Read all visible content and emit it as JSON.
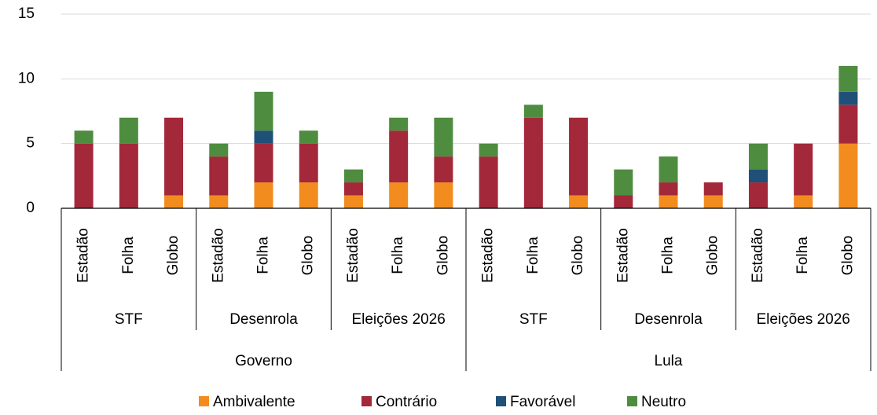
{
  "chart_data": {
    "type": "stacked_bar",
    "categories": [
      "Estadão",
      "Folha",
      "Globo",
      "Estadão",
      "Folha",
      "Globo",
      "Estadão",
      "Folha",
      "Globo",
      "Estadão",
      "Folha",
      "Globo",
      "Estadão",
      "Folha",
      "Globo",
      "Estadão",
      "Folha",
      "Globo"
    ],
    "subgroups": [
      "STF",
      "Desenrola",
      "Eleições 2026",
      "STF",
      "Desenrola",
      "Eleições 2026"
    ],
    "groups": [
      "Governo",
      "Lula"
    ],
    "series": [
      {
        "name": "Ambivalente",
        "color": "#f28c1e",
        "values": [
          0,
          0,
          1,
          1,
          2,
          2,
          1,
          2,
          2,
          0,
          0,
          1,
          0,
          1,
          1,
          0,
          1,
          5
        ]
      },
      {
        "name": "Contrário",
        "color": "#a3283a",
        "values": [
          5,
          5,
          6,
          3,
          3,
          3,
          1,
          4,
          2,
          4,
          7,
          6,
          1,
          1,
          1,
          2,
          4,
          3
        ]
      },
      {
        "name": "Favorável",
        "color": "#1f5078",
        "values": [
          0,
          0,
          0,
          0,
          1,
          0,
          0,
          0,
          0,
          0,
          0,
          0,
          0,
          0,
          0,
          1,
          0,
          1
        ]
      },
      {
        "name": "Neutro",
        "color": "#4e8c3f",
        "values": [
          1,
          2,
          0,
          1,
          3,
          1,
          1,
          1,
          3,
          1,
          1,
          0,
          2,
          2,
          0,
          2,
          0,
          2
        ]
      }
    ],
    "ylim": [
      0,
      15
    ],
    "yticks": [
      0,
      5,
      10,
      15
    ],
    "grid": true,
    "legend": "bottom"
  }
}
